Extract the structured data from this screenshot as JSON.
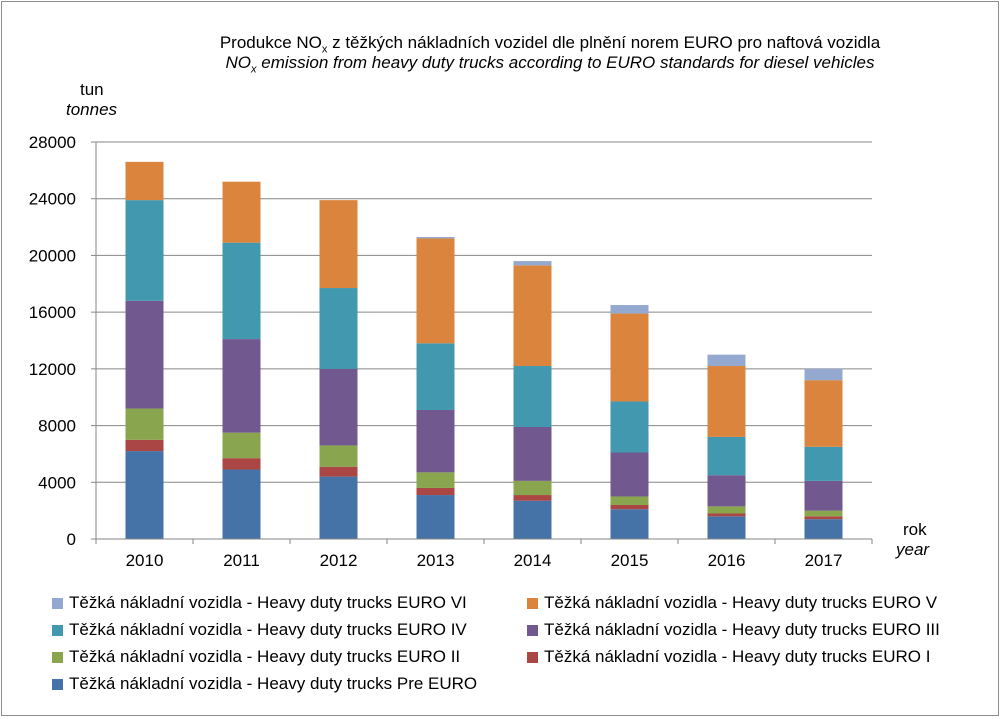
{
  "chart_data": {
    "type": "stacked-bar",
    "title_cz_parts": [
      "Produkce NO",
      "x",
      " z těžkých nákladních  vozidel dle plnění norem EURO pro naftová vozidla"
    ],
    "title_en_parts": [
      "NO",
      "x",
      " emission from heavy duty trucks according to EURO standards for diesel vehicles"
    ],
    "ylabel_cz": "tun",
    "ylabel_en": "tonnes",
    "xlabel_cz": "rok",
    "xlabel_en": "year",
    "ylim": [
      0,
      28000
    ],
    "yticks": [
      "0",
      "4000",
      "8000",
      "12000",
      "16000",
      "20000",
      "24000",
      "28000"
    ],
    "categories": [
      "2010",
      "2011",
      "2012",
      "2013",
      "2014",
      "2015",
      "2016",
      "2017"
    ],
    "series": [
      {
        "name": "Těžká nákladní vozidla - Heavy duty trucks Pre EURO",
        "color": "#4572a7",
        "values": [
          6200,
          4900,
          4400,
          3100,
          2700,
          2100,
          1600,
          1400
        ]
      },
      {
        "name": "Těžká nákladní vozidla - Heavy duty trucks EURO I",
        "color": "#aa4643",
        "values": [
          800,
          800,
          700,
          500,
          400,
          300,
          200,
          200
        ]
      },
      {
        "name": "Těžká nákladní vozidla - Heavy duty trucks EURO II",
        "color": "#89a54e",
        "values": [
          2200,
          1800,
          1500,
          1100,
          1000,
          600,
          500,
          400
        ]
      },
      {
        "name": "Těžká nákladní vozidla - Heavy duty trucks EURO III",
        "color": "#71588f",
        "values": [
          7600,
          6600,
          5400,
          4400,
          3800,
          3100,
          2200,
          2100
        ]
      },
      {
        "name": "Těžká nákladní vozidla - Heavy duty trucks EURO IV",
        "color": "#4198af",
        "values": [
          7100,
          6800,
          5700,
          4700,
          4300,
          3600,
          2700,
          2400
        ]
      },
      {
        "name": "Těžká nákladní vozidla - Heavy duty trucks EURO V",
        "color": "#db843d",
        "values": [
          2700,
          4300,
          6200,
          7400,
          7100,
          6200,
          5000,
          4700
        ]
      },
      {
        "name": "Těžká nákladní vozidla - Heavy duty trucks EURO VI",
        "color": "#93a9cf",
        "values": [
          0,
          0,
          0,
          100,
          300,
          600,
          800,
          800
        ]
      }
    ],
    "legend_order": [
      6,
      5,
      4,
      3,
      2,
      1,
      0
    ],
    "legend_position": "bottom",
    "grid": true
  }
}
